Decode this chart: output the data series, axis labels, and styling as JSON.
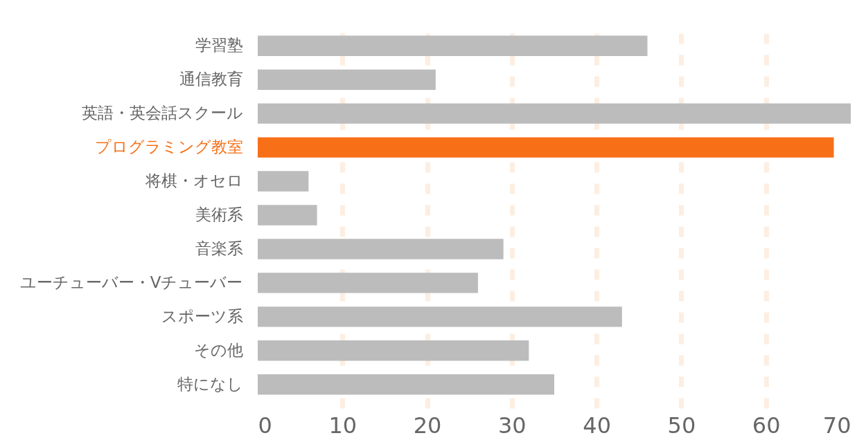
{
  "chart_data": {
    "type": "bar",
    "orientation": "horizontal",
    "categories": [
      "学習塾",
      "通信教育",
      "英語・英会話スクール",
      "プログラミング教室",
      "将棋・オセロ",
      "美術系",
      "音楽系",
      "ユーチューバー・Vチューバー",
      "スポーツ系",
      "その他",
      "特になし"
    ],
    "values": [
      46,
      21,
      70,
      68,
      6,
      7,
      29,
      26,
      43,
      32,
      35
    ],
    "colors": [
      "#bcbcbc",
      "#bcbcbc",
      "#bcbcbc",
      "#f77018",
      "#bcbcbc",
      "#bcbcbc",
      "#bcbcbc",
      "#bcbcbc",
      "#bcbcbc",
      "#bcbcbc",
      "#bcbcbc"
    ],
    "xlim": [
      0,
      70
    ],
    "xticks": [
      0,
      10,
      20,
      30,
      40,
      50,
      60,
      70
    ],
    "grid": "x"
  }
}
